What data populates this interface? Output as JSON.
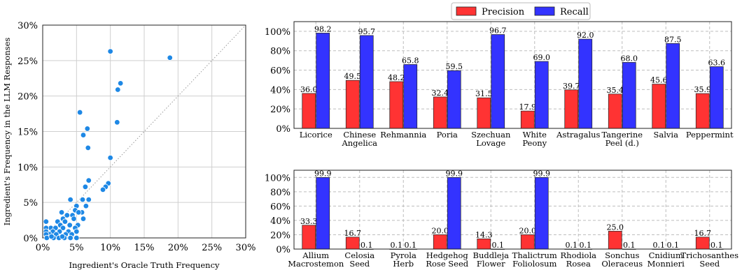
{
  "chart_data": [
    {
      "type": "scatter",
      "xlabel": "Ingredient's Oracle Truth Frequency",
      "ylabel": "Ingredient's Frequency in the LLM Responses",
      "xlim": [
        0,
        30
      ],
      "ylim": [
        0,
        30
      ],
      "x_ticks": [
        "0%",
        "5%",
        "10%",
        "15%",
        "20%",
        "25%",
        "30%"
      ],
      "y_ticks": [
        "0%",
        "5%",
        "10%",
        "15%",
        "20%",
        "25%",
        "30%"
      ],
      "grid": true,
      "reference_line": "y = x (dotted)",
      "point_color": "#1e88e5",
      "points": [
        {
          "x": 10.0,
          "y": 26.3
        },
        {
          "x": 18.8,
          "y": 25.4
        },
        {
          "x": 11.5,
          "y": 21.8
        },
        {
          "x": 11.1,
          "y": 20.9
        },
        {
          "x": 5.5,
          "y": 17.7
        },
        {
          "x": 11.0,
          "y": 16.3
        },
        {
          "x": 6.6,
          "y": 15.4
        },
        {
          "x": 6.0,
          "y": 14.5
        },
        {
          "x": 6.7,
          "y": 12.7
        },
        {
          "x": 10.0,
          "y": 11.3
        },
        {
          "x": 6.8,
          "y": 8.1
        },
        {
          "x": 9.7,
          "y": 7.7
        },
        {
          "x": 6.3,
          "y": 7.2
        },
        {
          "x": 9.3,
          "y": 7.2
        },
        {
          "x": 8.9,
          "y": 6.8
        },
        {
          "x": 4.1,
          "y": 5.4
        },
        {
          "x": 5.9,
          "y": 5.4
        },
        {
          "x": 6.8,
          "y": 5.4
        },
        {
          "x": 5.0,
          "y": 4.5
        },
        {
          "x": 6.4,
          "y": 4.5
        },
        {
          "x": 4.8,
          "y": 3.9
        },
        {
          "x": 5.8,
          "y": 3.6
        },
        {
          "x": 5.3,
          "y": 3.6
        },
        {
          "x": 2.8,
          "y": 3.6
        },
        {
          "x": 3.6,
          "y": 3.2
        },
        {
          "x": 4.4,
          "y": 3.2
        },
        {
          "x": 3.0,
          "y": 2.7
        },
        {
          "x": 4.6,
          "y": 2.7
        },
        {
          "x": 6.0,
          "y": 2.7
        },
        {
          "x": 2.2,
          "y": 2.3
        },
        {
          "x": 0.5,
          "y": 2.3
        },
        {
          "x": 3.3,
          "y": 2.3
        },
        {
          "x": 4.0,
          "y": 1.8
        },
        {
          "x": 5.2,
          "y": 1.8
        },
        {
          "x": 2.6,
          "y": 1.8
        },
        {
          "x": 1.2,
          "y": 1.4
        },
        {
          "x": 1.9,
          "y": 1.4
        },
        {
          "x": 3.0,
          "y": 1.4
        },
        {
          "x": 0.5,
          "y": 1.4
        },
        {
          "x": 4.8,
          "y": 1.4
        },
        {
          "x": 3.8,
          "y": 0.9
        },
        {
          "x": 1.5,
          "y": 0.9
        },
        {
          "x": 2.5,
          "y": 0.9
        },
        {
          "x": 0.5,
          "y": 0.9
        },
        {
          "x": 5.0,
          "y": 0.9
        },
        {
          "x": 3.4,
          "y": 0.5
        },
        {
          "x": 2.0,
          "y": 0.5
        },
        {
          "x": 1.0,
          "y": 0.5
        },
        {
          "x": 4.3,
          "y": 0.5
        },
        {
          "x": 0.5,
          "y": 0.5
        },
        {
          "x": 1.6,
          "y": 0.0
        },
        {
          "x": 2.4,
          "y": 0.0
        },
        {
          "x": 3.2,
          "y": 0.0
        },
        {
          "x": 4.1,
          "y": 0.0
        },
        {
          "x": 0.6,
          "y": 0.0
        },
        {
          "x": 5.0,
          "y": 0.0
        },
        {
          "x": 2.9,
          "y": 0.2
        },
        {
          "x": 1.3,
          "y": 0.2
        }
      ]
    },
    {
      "type": "bar",
      "legend": [
        "Precision",
        "Recall"
      ],
      "legend_position": "top-center",
      "colors": {
        "Precision": "#ff3333",
        "Recall": "#3333ff"
      },
      "ylim": [
        0,
        110
      ],
      "y_ticks": [
        "0%",
        "20%",
        "40%",
        "60%",
        "80%",
        "100%"
      ],
      "grid": true,
      "categories": [
        "Licorice",
        "Chinese\nAngelica",
        "Rehmannia",
        "Poria",
        "Szechuan\nLovage",
        "White\nPeony",
        "Astragalus",
        "Tangerine\nPeel (d.)",
        "Salvia",
        "Peppermint"
      ],
      "series": [
        {
          "name": "Precision",
          "values": [
            36.0,
            49.5,
            48.2,
            32.4,
            31.5,
            17.9,
            39.7,
            35.4,
            45.6,
            35.9
          ]
        },
        {
          "name": "Recall",
          "values": [
            98.2,
            95.7,
            65.8,
            59.5,
            96.7,
            69.0,
            92.0,
            68.0,
            87.5,
            63.6
          ]
        }
      ]
    },
    {
      "type": "bar",
      "ylim": [
        0,
        110
      ],
      "y_ticks": [
        "0%",
        "20%",
        "40%",
        "60%",
        "80%",
        "100%"
      ],
      "grid": true,
      "categories": [
        "Allium\nMacrostemon",
        "Celosia\nSeed",
        "Pyrola\nHerb",
        "Hedgehog\nRose Seed",
        "Buddleja\nFlower",
        "Thalictrum\nFoliolosum",
        "Rhodiola\nRosea",
        "Sonchus\nOleraceus",
        "Cnidium\nMonnieri",
        "Trichosanthes\nSeed"
      ],
      "series": [
        {
          "name": "Precision",
          "values": [
            33.3,
            16.7,
            0.1,
            20.0,
            14.3,
            20.0,
            0.1,
            25.0,
            0.1,
            16.7
          ]
        },
        {
          "name": "Recall",
          "values": [
            99.9,
            0.1,
            0.1,
            99.9,
            0.1,
            99.9,
            0.1,
            0.1,
            0.1,
            0.1
          ]
        }
      ]
    }
  ]
}
